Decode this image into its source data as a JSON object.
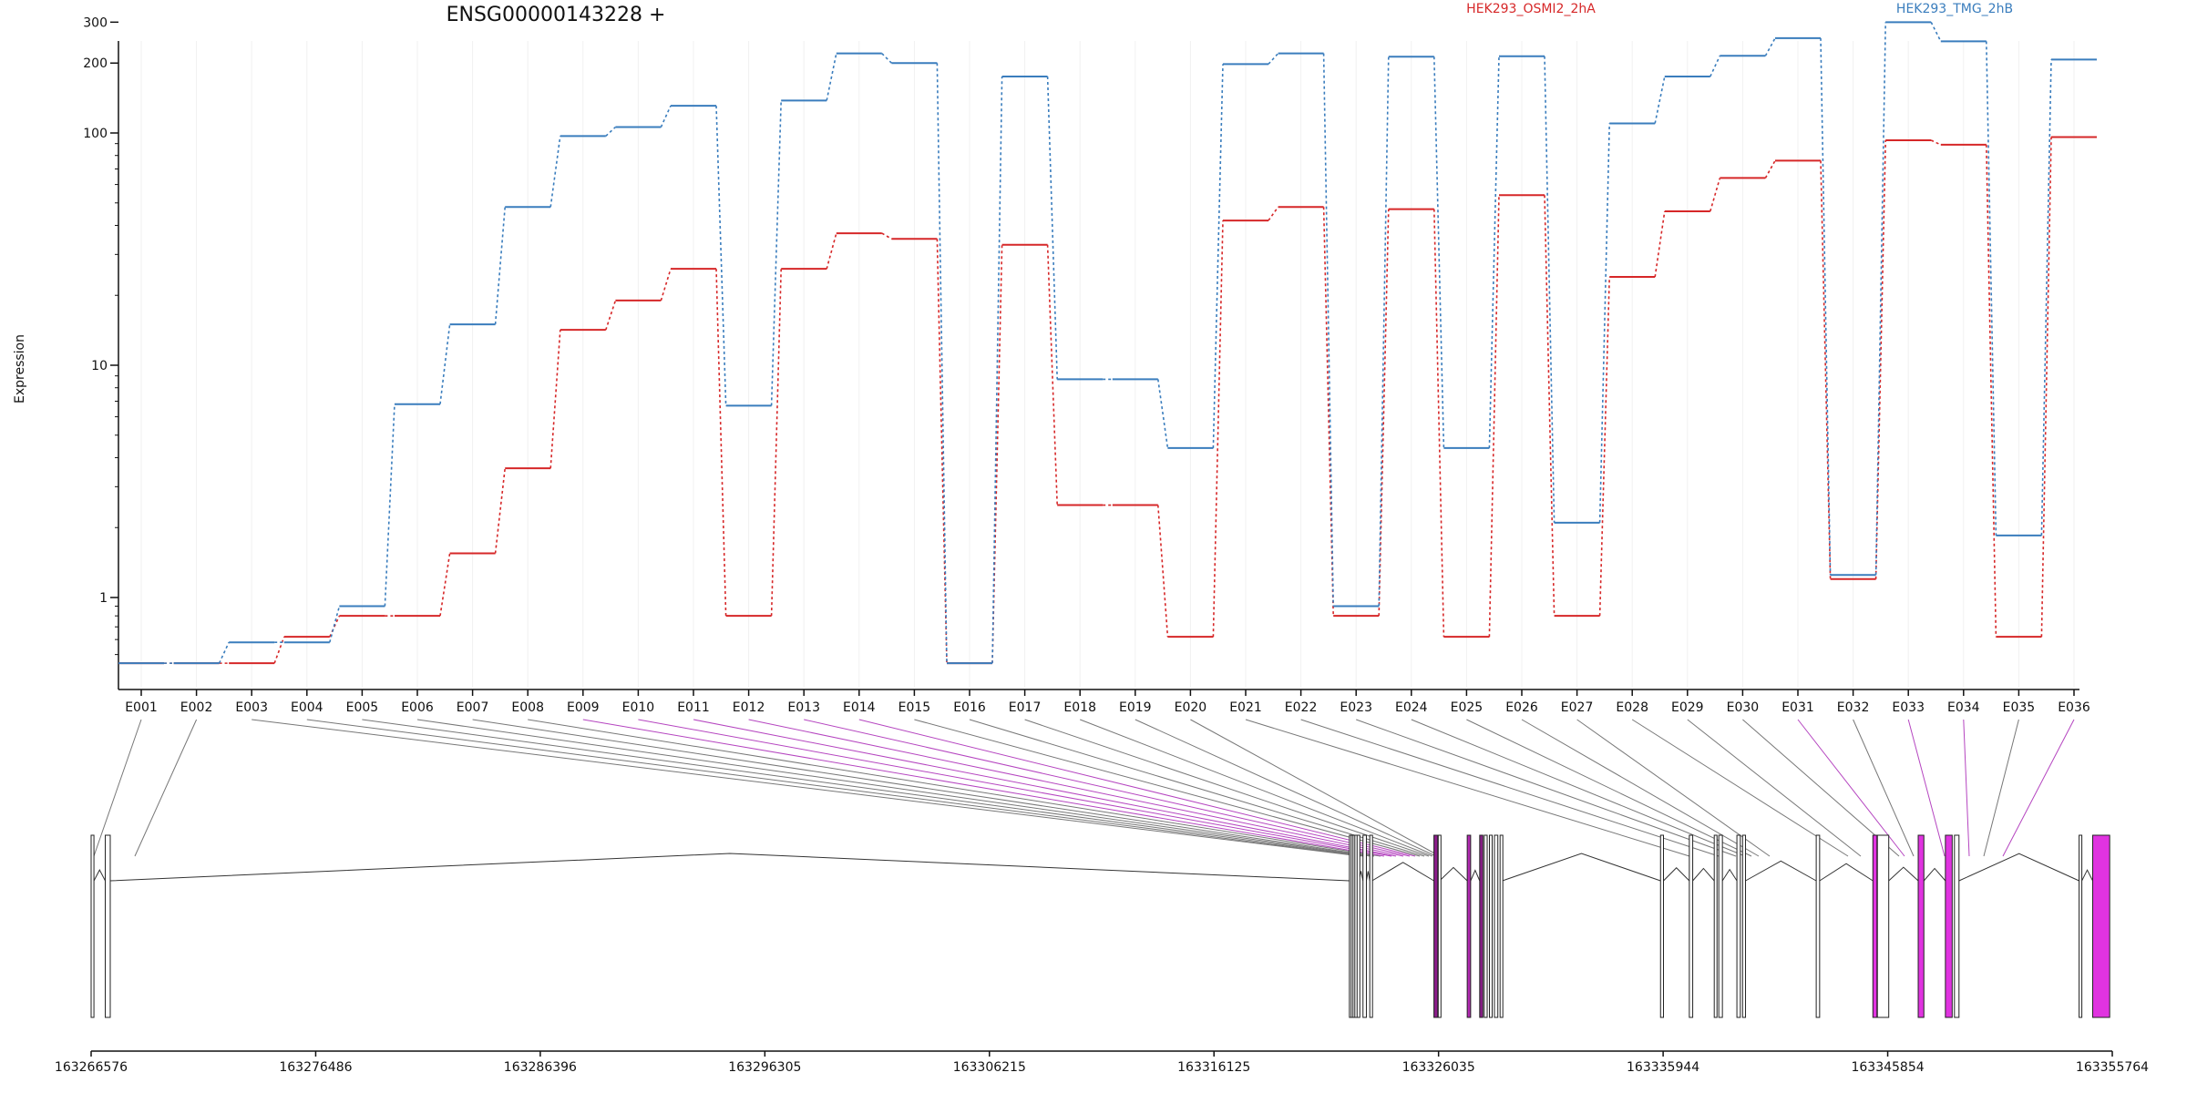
{
  "chart_data": {
    "type": "line",
    "title": "ENSG00000143228 +",
    "ylabel": "Expression",
    "y_scale": "log",
    "y_ticks": [
      1,
      10,
      100,
      200,
      300
    ],
    "y_tick_labels": [
      "1",
      "10",
      "100",
      "200",
      "300"
    ],
    "categories": [
      "E001",
      "E002",
      "E003",
      "E004",
      "E005",
      "E006",
      "E007",
      "E008",
      "E009",
      "E010",
      "E011",
      "E012",
      "E013",
      "E014",
      "E015",
      "E016",
      "E017",
      "E018",
      "E019",
      "E020",
      "E021",
      "E022",
      "E023",
      "E024",
      "E025",
      "E026",
      "E027",
      "E028",
      "E029",
      "E030",
      "E031",
      "E032",
      "E033",
      "E034",
      "E035",
      "E036"
    ],
    "series": [
      {
        "name": "HEK293_OSMI2_2hA",
        "color": "#d62728",
        "values": [
          0.45,
          0.45,
          0.45,
          0.62,
          0.8,
          0.8,
          1.55,
          3.6,
          14.2,
          19,
          26,
          0.8,
          26,
          37,
          35,
          0.45,
          33,
          2.5,
          2.5,
          0.62,
          42,
          48,
          0.8,
          47,
          0.62,
          54,
          0.8,
          24,
          46,
          64,
          76,
          1.2,
          93,
          89,
          0.62,
          96
        ]
      },
      {
        "name": "HEK293_TMG_2hB",
        "color": "#3a7dbd",
        "values": [
          0.45,
          0.45,
          0.58,
          0.58,
          0.9,
          6.8,
          15,
          48,
          97,
          106,
          131,
          6.7,
          138,
          220,
          200,
          0.45,
          175,
          8.7,
          8.7,
          4.4,
          198,
          220,
          0.9,
          213,
          4.4,
          214,
          2.1,
          110,
          175,
          215,
          256,
          1.25,
          300,
          248,
          1.85,
          207
        ]
      }
    ],
    "highlighted_exons": [
      "E009",
      "E010",
      "E011",
      "E012",
      "E013",
      "E014",
      "E031",
      "E033",
      "E034",
      "E036"
    ],
    "genomic_axis": {
      "start": 163266576,
      "end": 163355764,
      "tick_labels": [
        "163266576",
        "163276486",
        "163286396",
        "163296305",
        "163306215",
        "163316125",
        "163326035",
        "163335944",
        "163345854",
        "163355764"
      ]
    },
    "grid": true,
    "legend_position": "top-right"
  }
}
